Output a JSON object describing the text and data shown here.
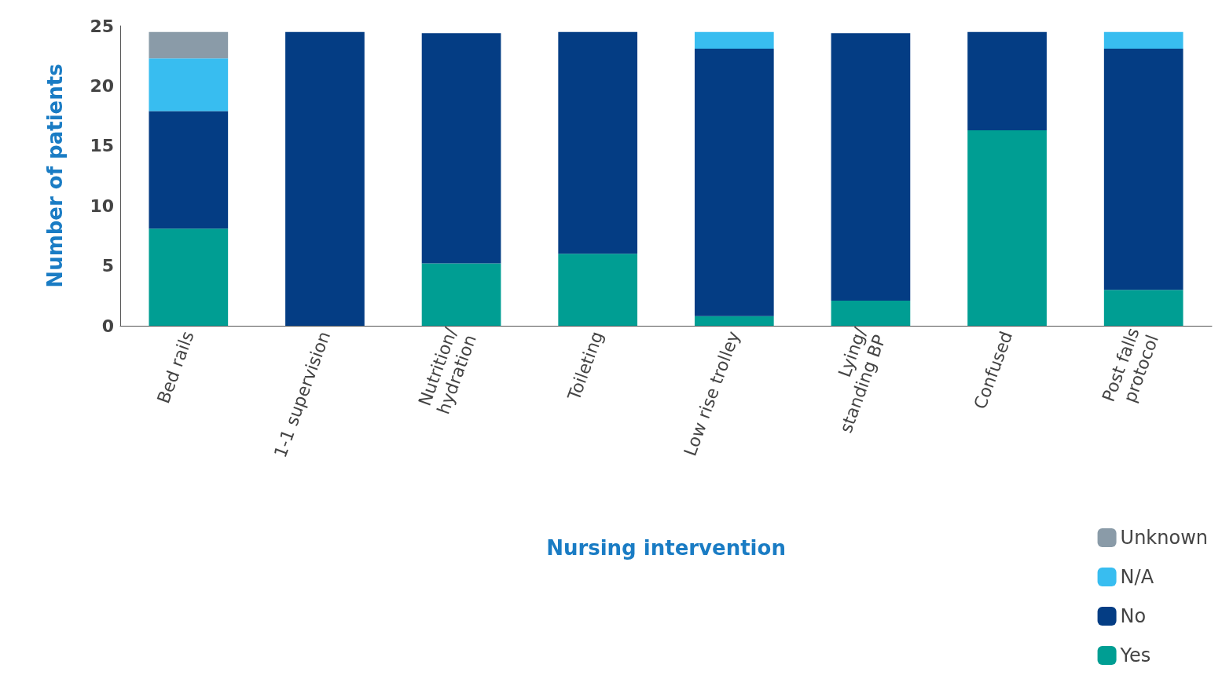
{
  "chart_data": {
    "type": "bar",
    "stacked": true,
    "xlabel": "Nursing intervention",
    "ylabel": "Number of patients",
    "categories": [
      "Bed rails",
      "1-1 supervision",
      "Nutrition/\nhydration",
      "Toileting",
      "Low rise trolley",
      "Lying/\nstanding BP",
      "Confused",
      "Post falls\nprotocol"
    ],
    "series": [
      {
        "name": "Yes",
        "color": "#009e93",
        "values": [
          8.1,
          0,
          5.2,
          6,
          0.8,
          2.1,
          16.3,
          3
        ]
      },
      {
        "name": "No",
        "color": "#043d84",
        "values": [
          9.8,
          24.5,
          19.2,
          18.5,
          22.3,
          22.3,
          8.2,
          20.1
        ]
      },
      {
        "name": "N/A",
        "color": "#38bdf0",
        "values": [
          4.4,
          0,
          0,
          0,
          1.4,
          0,
          0,
          1.4
        ]
      },
      {
        "name": "Unknown",
        "color": "#8a9ba8",
        "values": [
          2.2,
          0,
          0,
          0,
          0,
          0,
          0,
          0
        ]
      }
    ],
    "ylim": [
      0,
      25
    ],
    "yticks": [
      0,
      5,
      10,
      15,
      20,
      25
    ],
    "grid": false,
    "legend": "bottom right"
  }
}
